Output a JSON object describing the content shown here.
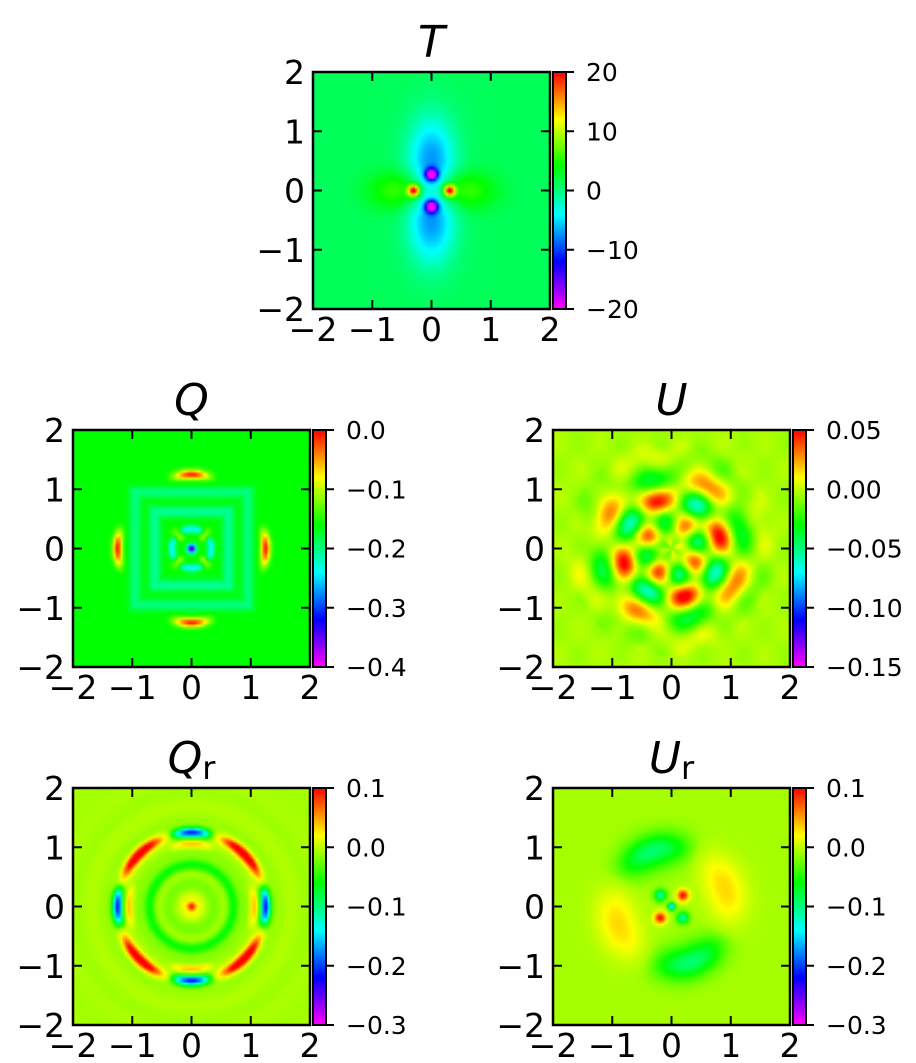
{
  "chart_data": [
    {
      "type": "heatmap",
      "field": "T",
      "title": "T",
      "xlim": [
        -2,
        2
      ],
      "ylim": [
        -2,
        2
      ],
      "xticks": [
        "−2",
        "−1",
        "0",
        "1",
        "2"
      ],
      "yticks": [
        "2",
        "1",
        "0",
        "−1",
        "−2"
      ],
      "colorbar": {
        "range": [
          -20,
          20
        ],
        "ticks": [
          "20",
          "10",
          "0",
          "−10",
          "−20"
        ],
        "colormap": "gist_rainbow"
      }
    },
    {
      "type": "heatmap",
      "field": "Q",
      "title": "Q",
      "xlim": [
        -2,
        2
      ],
      "ylim": [
        -2,
        2
      ],
      "xticks": [
        "−2",
        "−1",
        "0",
        "1",
        "2"
      ],
      "yticks": [
        "2",
        "1",
        "0",
        "−1",
        "−2"
      ],
      "colorbar": {
        "range": [
          -0.4,
          0.0
        ],
        "ticks": [
          "0.0",
          "−0.1",
          "−0.2",
          "−0.3",
          "−0.4"
        ],
        "colormap": "gist_rainbow"
      }
    },
    {
      "type": "heatmap",
      "field": "U",
      "title": "U",
      "xlim": [
        -2,
        2
      ],
      "ylim": [
        -2,
        2
      ],
      "xticks": [
        "−2",
        "−1",
        "0",
        "1",
        "2"
      ],
      "yticks": [
        "2",
        "1",
        "0",
        "−1",
        "−2"
      ],
      "colorbar": {
        "range": [
          -0.15,
          0.05
        ],
        "ticks": [
          "0.05",
          "0.00",
          "−0.05",
          "−0.10",
          "−0.15"
        ],
        "colormap": "gist_rainbow"
      }
    },
    {
      "type": "heatmap",
      "field": "Qr",
      "title": "Q",
      "title_sub": "r",
      "xlim": [
        -2,
        2
      ],
      "ylim": [
        -2,
        2
      ],
      "xticks": [
        "−2",
        "−1",
        "0",
        "1",
        "2"
      ],
      "yticks": [
        "2",
        "1",
        "0",
        "−1",
        "−2"
      ],
      "colorbar": {
        "range": [
          -0.3,
          0.1
        ],
        "ticks": [
          "0.1",
          "0.0",
          "−0.1",
          "−0.2",
          "−0.3"
        ],
        "colormap": "gist_rainbow"
      }
    },
    {
      "type": "heatmap",
      "field": "Ur",
      "title": "U",
      "title_sub": "r",
      "xlim": [
        -2,
        2
      ],
      "ylim": [
        -2,
        2
      ],
      "xticks": [
        "−2",
        "−1",
        "0",
        "1",
        "2"
      ],
      "yticks": [
        "2",
        "1",
        "0",
        "−1",
        "−2"
      ],
      "colorbar": {
        "range": [
          -0.3,
          0.1
        ],
        "ticks": [
          "0.1",
          "0.0",
          "−0.1",
          "−0.2",
          "−0.3"
        ],
        "colormap": "gist_rainbow"
      }
    }
  ]
}
